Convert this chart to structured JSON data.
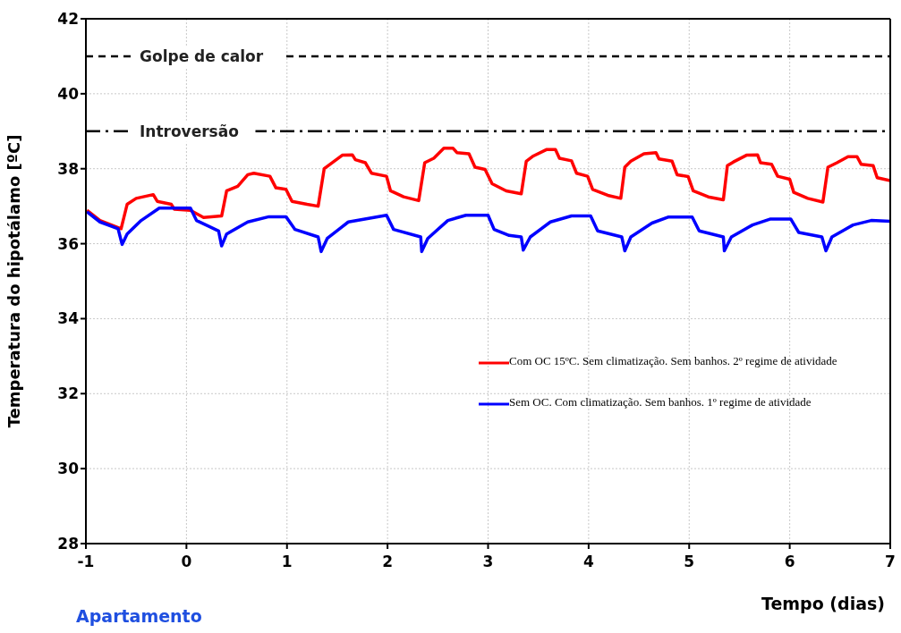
{
  "chart_data": {
    "type": "line",
    "ylabel": "Temperatura do hipotálamo  [ºC]",
    "xlabel": "Tempo (dias)",
    "xlim": [
      -1,
      7
    ],
    "xticks": [
      -1,
      0,
      1,
      2,
      3,
      4,
      5,
      6,
      7
    ],
    "ylim": [
      28,
      42
    ],
    "yticks": [
      28,
      30,
      32,
      34,
      36,
      38,
      40,
      42
    ],
    "grid": true,
    "legend": "right",
    "marker": "none",
    "line_style": "solid",
    "annotations": [
      "Apartamento"
    ],
    "ref_lines": [
      {
        "axis": "y",
        "value": 41,
        "label": "Golpe de calor",
        "color": "#000000",
        "line_style": "dashed"
      },
      {
        "axis": "y",
        "value": 39,
        "label": "Introversão",
        "color": "#000000",
        "line_style": "dashdot"
      }
    ],
    "series": [
      {
        "name": "Com OC 15ºC. Sem climatização. Sem banhos. 2º regime de atividade",
        "color": "#ff0000",
        "x": [
          -0.99,
          -0.86,
          -0.65,
          -0.59,
          -0.5,
          -0.33,
          -0.29,
          -0.15,
          -0.12,
          0.04,
          0.17,
          0.35,
          0.4,
          0.51,
          0.61,
          0.67,
          0.83,
          0.89,
          0.99,
          1.05,
          1.2,
          1.31,
          1.37,
          1.43,
          1.55,
          1.65,
          1.68,
          1.78,
          1.84,
          1.99,
          2.03,
          2.16,
          2.31,
          2.37,
          2.46,
          2.56,
          2.65,
          2.69,
          2.81,
          2.87,
          2.97,
          3.04,
          3.18,
          3.33,
          3.38,
          3.45,
          3.58,
          3.67,
          3.71,
          3.83,
          3.88,
          3.99,
          4.04,
          4.19,
          4.32,
          4.36,
          4.42,
          4.55,
          4.67,
          4.7,
          4.83,
          4.88,
          4.99,
          5.04,
          5.19,
          5.34,
          5.38,
          5.44,
          5.57,
          5.68,
          5.71,
          5.82,
          5.88,
          6.0,
          6.04,
          6.18,
          6.33,
          6.38,
          6.47,
          6.58,
          6.67,
          6.71,
          6.83,
          6.87,
          7.0
        ],
        "values": [
          36.89,
          36.62,
          36.4,
          37.05,
          37.21,
          37.31,
          37.13,
          37.05,
          36.92,
          36.89,
          36.7,
          36.74,
          37.41,
          37.53,
          37.84,
          37.88,
          37.8,
          37.49,
          37.45,
          37.13,
          37.05,
          37.0,
          38.0,
          38.12,
          38.36,
          38.37,
          38.24,
          38.16,
          37.88,
          37.8,
          37.41,
          37.25,
          37.15,
          38.16,
          38.28,
          38.55,
          38.55,
          38.43,
          38.4,
          38.04,
          37.98,
          37.6,
          37.41,
          37.33,
          38.2,
          38.34,
          38.51,
          38.51,
          38.28,
          38.21,
          37.88,
          37.8,
          37.45,
          37.29,
          37.21,
          38.04,
          38.2,
          38.4,
          38.43,
          38.26,
          38.2,
          37.84,
          37.79,
          37.41,
          37.25,
          37.17,
          38.08,
          38.18,
          38.36,
          38.37,
          38.16,
          38.12,
          37.8,
          37.72,
          37.37,
          37.21,
          37.11,
          38.04,
          38.16,
          38.32,
          38.32,
          38.12,
          38.08,
          37.76,
          37.68
        ]
      },
      {
        "name": "Sem OC. Com climatização. Sem banhos. 1º regime de atividade",
        "color": "#0000ff",
        "x": [
          -0.99,
          -0.86,
          -0.68,
          -0.64,
          -0.59,
          -0.45,
          -0.27,
          0.04,
          0.1,
          0.32,
          0.35,
          0.4,
          0.61,
          0.82,
          0.99,
          1.08,
          1.31,
          1.34,
          1.4,
          1.61,
          1.99,
          2.06,
          2.33,
          2.34,
          2.4,
          2.6,
          2.78,
          3.0,
          3.06,
          3.21,
          3.33,
          3.35,
          3.42,
          3.62,
          3.83,
          4.02,
          4.09,
          4.33,
          4.36,
          4.42,
          4.63,
          4.79,
          5.03,
          5.1,
          5.34,
          5.35,
          5.42,
          5.63,
          5.81,
          6.01,
          6.09,
          6.32,
          6.36,
          6.42,
          6.63,
          6.81,
          7.0
        ],
        "values": [
          36.85,
          36.58,
          36.4,
          35.98,
          36.26,
          36.62,
          36.95,
          36.95,
          36.62,
          36.34,
          35.94,
          36.26,
          36.58,
          36.72,
          36.72,
          36.38,
          36.18,
          35.79,
          36.14,
          36.58,
          36.76,
          36.38,
          36.18,
          35.79,
          36.14,
          36.62,
          36.76,
          36.76,
          36.38,
          36.22,
          36.18,
          35.83,
          36.18,
          36.58,
          36.74,
          36.74,
          36.34,
          36.18,
          35.81,
          36.18,
          36.55,
          36.71,
          36.71,
          36.34,
          36.18,
          35.81,
          36.18,
          36.5,
          36.66,
          36.66,
          36.3,
          36.18,
          35.81,
          36.18,
          36.5,
          36.62,
          36.6
        ]
      }
    ]
  }
}
